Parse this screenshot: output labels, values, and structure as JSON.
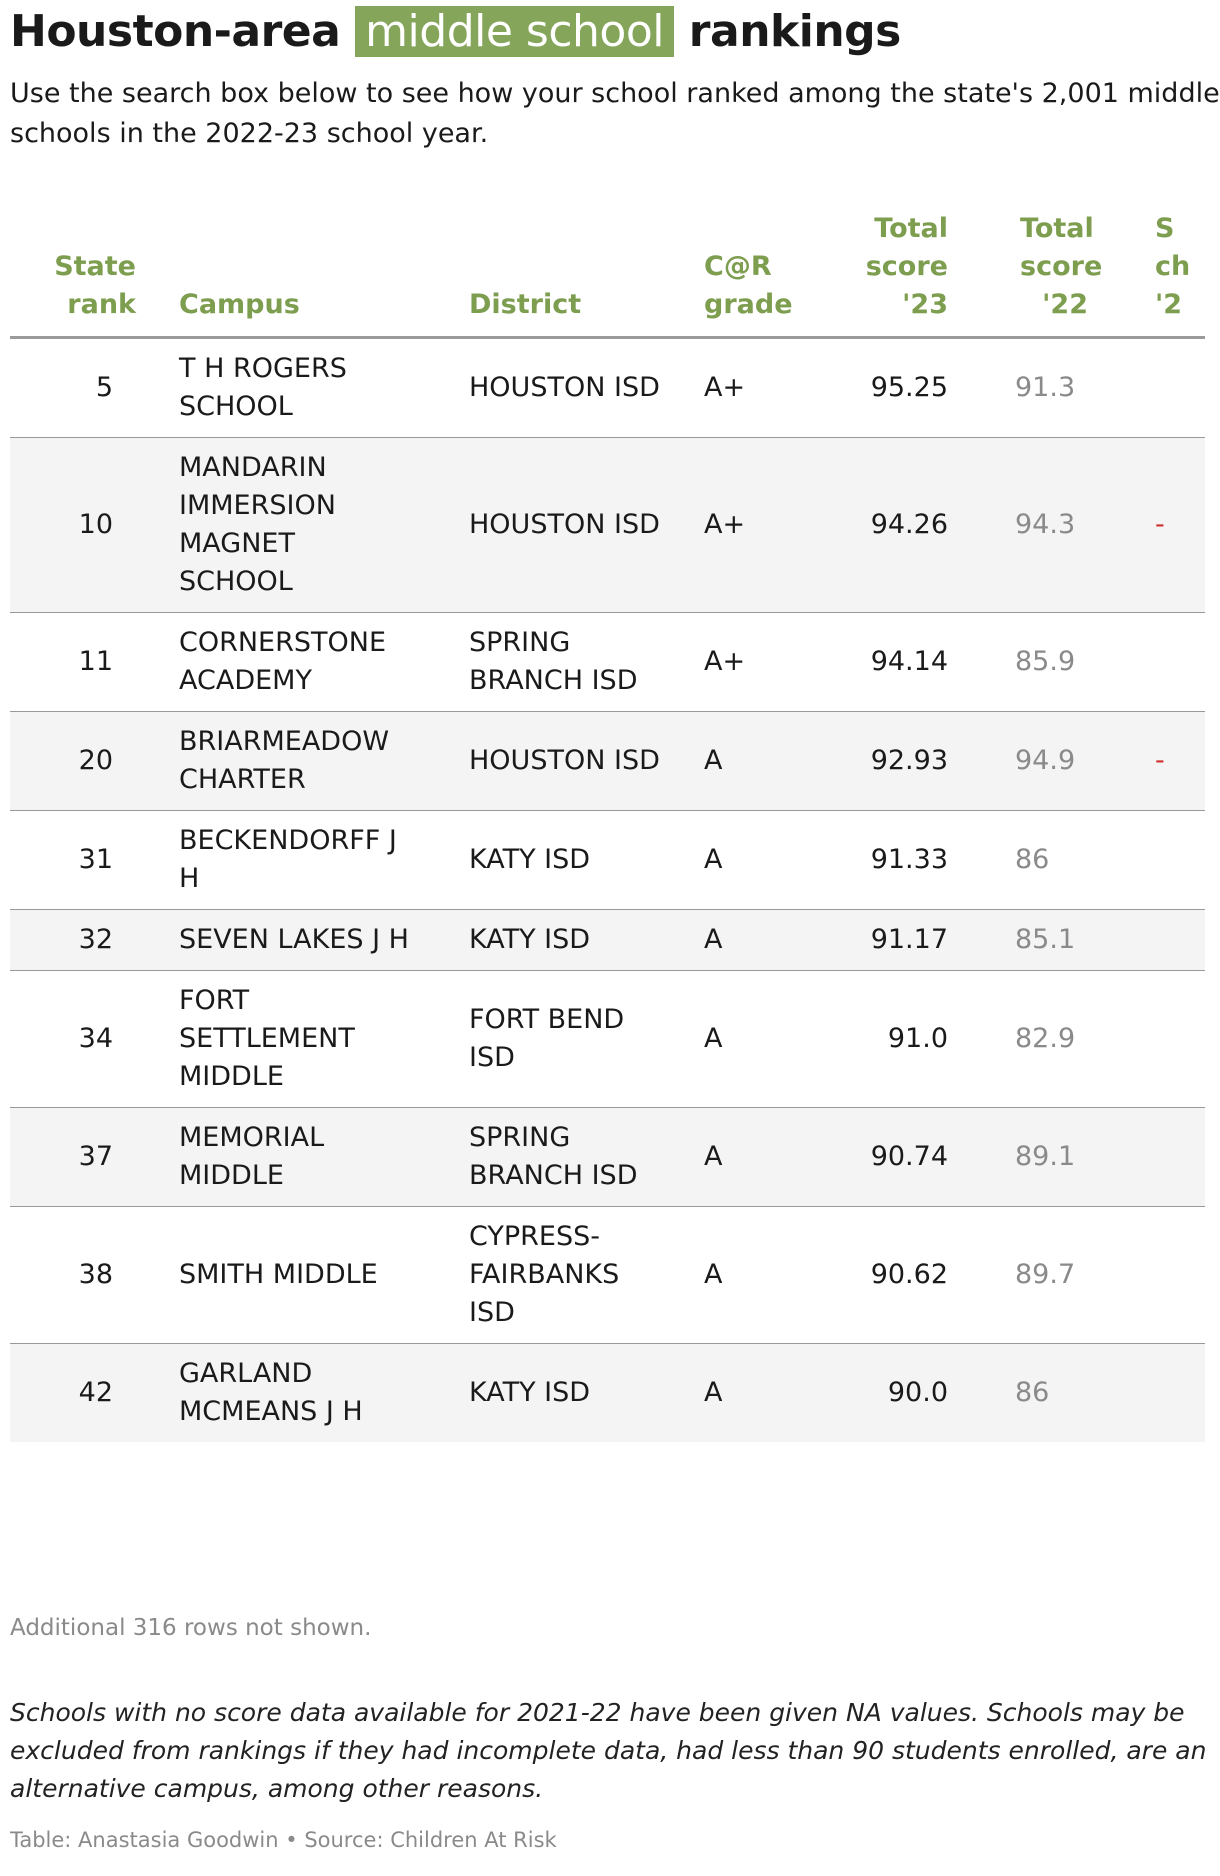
{
  "header": {
    "title_before": "Houston-area",
    "title_highlight": "middle school",
    "title_after": "rankings",
    "subtitle": "Use the search box below to see how your school ranked among the state's 2,001 middle schools in the 2022-23 school year."
  },
  "table": {
    "columns": [
      "State rank",
      "Campus",
      "District",
      "C@R grade",
      "Total score '23",
      "Total score '22",
      "S ch '2"
    ],
    "rows": [
      [
        5,
        "T H ROGERS SCHOOL",
        "HOUSTON ISD",
        "A+",
        95.25,
        91.3,
        null
      ],
      [
        10,
        "MANDARIN IMMERSION MAGNET SCHOOL",
        "HOUSTON ISD",
        "A+",
        94.26,
        94.3,
        "-"
      ],
      [
        11,
        "CORNERSTONE ACADEMY",
        "SPRING BRANCH ISD",
        "A+",
        94.14,
        85.9,
        null
      ],
      [
        20,
        "BRIARMEADOW CHARTER",
        "HOUSTON ISD",
        "A",
        92.93,
        94.9,
        "-"
      ],
      [
        31,
        "BECKENDORFF J H",
        "KATY ISD",
        "A",
        91.33,
        86,
        null
      ],
      [
        32,
        "SEVEN LAKES J H",
        "KATY ISD",
        "A",
        91.17,
        85.1,
        null
      ],
      [
        34,
        "FORT SETTLEMENT MIDDLE",
        "FORT BEND ISD",
        "A",
        "91.0",
        82.9,
        null
      ],
      [
        37,
        "MEMORIAL MIDDLE",
        "SPRING BRANCH ISD",
        "A",
        90.74,
        89.1,
        null
      ],
      [
        38,
        "SMITH MIDDLE",
        "CYPRESS-FAIRBANKS ISD",
        "A",
        90.62,
        89.7,
        null
      ],
      [
        42,
        "GARLAND MCMEANS J H",
        "KATY ISD",
        "A",
        "90.0",
        86,
        null
      ]
    ]
  },
  "footer": {
    "rows_note": "Additional 316 rows not shown.",
    "note": "Schools with no score data available for 2021-22 have been given NA values. Schools may be excluded from rankings if they had incomplete data, had less than 90 students enrolled, are an alternative campus, among other reasons.",
    "source": "Table: Anastasia Goodwin • Source: Children At Risk"
  }
}
